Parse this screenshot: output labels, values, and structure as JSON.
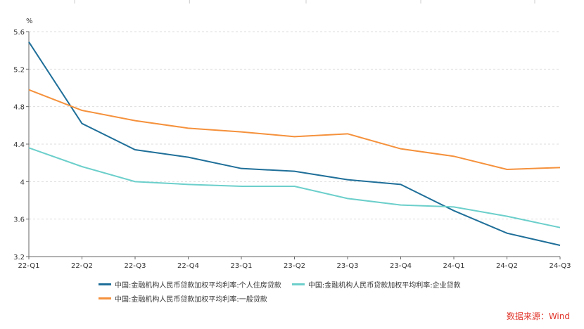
{
  "chart_data": {
    "type": "line",
    "ylabel": "%",
    "ylim": [
      3.2,
      5.6
    ],
    "yticks": [
      "3.2",
      "3.6",
      "4",
      "4.4",
      "4.8",
      "5.2",
      "5.6"
    ],
    "grid": "horizontal dashed",
    "legend_position": "bottom",
    "categories": [
      "22-Q1",
      "22-Q2",
      "22-Q3",
      "22-Q4",
      "23-Q1",
      "23-Q2",
      "23-Q3",
      "23-Q4",
      "24-Q1",
      "24-Q2",
      "24-Q3"
    ],
    "series": [
      {
        "name": "中国:金融机构人民币贷款加权平均利率:个人住房贷款",
        "color": "#1f6f99",
        "values": [
          5.49,
          4.62,
          4.34,
          4.26,
          4.14,
          4.11,
          4.02,
          3.97,
          3.69,
          3.45,
          3.32
        ]
      },
      {
        "name": "中国:金融机构人民币贷款加权平均利率:企业贷款",
        "color": "#6ccfcb",
        "values": [
          4.36,
          4.16,
          4.0,
          3.97,
          3.95,
          3.95,
          3.82,
          3.75,
          3.73,
          3.63,
          3.51
        ]
      },
      {
        "name": "中国:金融机构人民币贷款加权平均利率:一般贷款",
        "color": "#f5913c",
        "values": [
          4.98,
          4.76,
          4.65,
          4.57,
          4.53,
          4.48,
          4.51,
          4.35,
          4.27,
          4.13,
          4.15
        ]
      }
    ]
  },
  "source": "数据来源：Wind"
}
